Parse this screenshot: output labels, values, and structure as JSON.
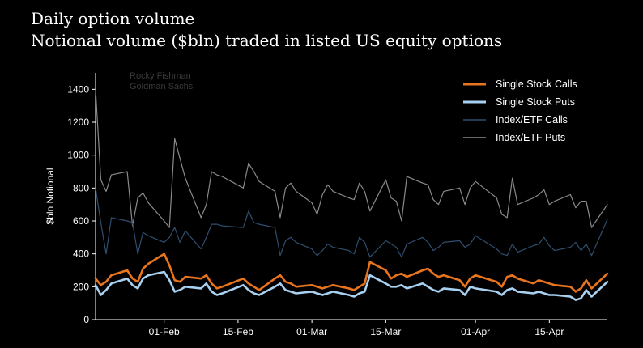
{
  "header": {
    "title": "Daily option volume",
    "subtitle": "Notional volume ($bln) traded in listed US equity options"
  },
  "chart_data": {
    "type": "line",
    "title": "Daily option volume",
    "subtitle": "Notional volume ($bln) traded in listed US equity options",
    "ylabel": "$bln Notional",
    "xlabel": "",
    "credit": [
      "Rocky Fishman",
      "Goldman Sachs"
    ],
    "ylim": [
      0,
      1500
    ],
    "yticks": [
      0,
      200,
      400,
      600,
      800,
      1000,
      1200,
      1400
    ],
    "x_start": "2021-01-19",
    "x_end": "2021-04-26",
    "xticks": [
      {
        "date": "2021-02-01",
        "label": "01-Feb"
      },
      {
        "date": "2021-02-15",
        "label": "15-Feb"
      },
      {
        "date": "2021-03-01",
        "label": "01-Mar"
      },
      {
        "date": "2021-03-15",
        "label": "15-Mar"
      },
      {
        "date": "2021-04-01",
        "label": "01-Apr"
      },
      {
        "date": "2021-04-15",
        "label": "15-Apr"
      }
    ],
    "legend_position": "top-right",
    "grid": false,
    "x": [
      "2021-01-19",
      "2021-01-20",
      "2021-01-21",
      "2021-01-22",
      "2021-01-25",
      "2021-01-26",
      "2021-01-27",
      "2021-01-28",
      "2021-01-29",
      "2021-02-01",
      "2021-02-02",
      "2021-02-03",
      "2021-02-04",
      "2021-02-05",
      "2021-02-08",
      "2021-02-09",
      "2021-02-10",
      "2021-02-11",
      "2021-02-12",
      "2021-02-16",
      "2021-02-17",
      "2021-02-18",
      "2021-02-19",
      "2021-02-22",
      "2021-02-23",
      "2021-02-24",
      "2021-02-25",
      "2021-02-26",
      "2021-03-01",
      "2021-03-02",
      "2021-03-03",
      "2021-03-04",
      "2021-03-05",
      "2021-03-08",
      "2021-03-09",
      "2021-03-10",
      "2021-03-11",
      "2021-03-12",
      "2021-03-15",
      "2021-03-16",
      "2021-03-17",
      "2021-03-18",
      "2021-03-19",
      "2021-03-22",
      "2021-03-23",
      "2021-03-24",
      "2021-03-25",
      "2021-03-26",
      "2021-03-29",
      "2021-03-30",
      "2021-03-31",
      "2021-04-01",
      "2021-04-05",
      "2021-04-06",
      "2021-04-07",
      "2021-04-08",
      "2021-04-09",
      "2021-04-12",
      "2021-04-13",
      "2021-04-14",
      "2021-04-15",
      "2021-04-16",
      "2021-04-19",
      "2021-04-20",
      "2021-04-21",
      "2021-04-22",
      "2021-04-23",
      "2021-04-26"
    ],
    "series": [
      {
        "name": "Index/ETF Puts",
        "color": "#8a8a8a",
        "width": 1.2,
        "values": [
          1400,
          850,
          780,
          880,
          900,
          570,
          740,
          770,
          710,
          600,
          560,
          1100,
          980,
          860,
          620,
          700,
          900,
          880,
          870,
          800,
          950,
          900,
          840,
          780,
          620,
          800,
          830,
          780,
          710,
          640,
          760,
          820,
          780,
          740,
          730,
          830,
          780,
          660,
          850,
          740,
          720,
          600,
          870,
          830,
          820,
          730,
          700,
          780,
          800,
          700,
          800,
          840,
          740,
          640,
          620,
          860,
          700,
          740,
          760,
          790,
          700,
          720,
          760,
          680,
          720,
          720,
          560,
          700
        ]
      },
      {
        "name": "Index/ETF Calls",
        "color": "#2f4e6e",
        "width": 1.2,
        "values": [
          800,
          590,
          400,
          620,
          600,
          590,
          400,
          530,
          510,
          470,
          500,
          560,
          470,
          540,
          430,
          500,
          580,
          580,
          570,
          560,
          660,
          590,
          580,
          560,
          390,
          480,
          500,
          470,
          430,
          390,
          420,
          460,
          440,
          420,
          400,
          500,
          470,
          380,
          480,
          460,
          440,
          380,
          460,
          500,
          470,
          420,
          440,
          470,
          480,
          440,
          460,
          510,
          430,
          400,
          390,
          460,
          410,
          450,
          460,
          500,
          450,
          420,
          440,
          470,
          420,
          460,
          390,
          610
        ]
      },
      {
        "name": "Single Stock Calls",
        "color": "#e8741e",
        "width": 2.6,
        "values": [
          250,
          210,
          230,
          270,
          300,
          250,
          230,
          310,
          340,
          400,
          330,
          240,
          230,
          260,
          250,
          270,
          220,
          190,
          200,
          250,
          220,
          200,
          180,
          250,
          270,
          230,
          220,
          200,
          210,
          200,
          190,
          200,
          210,
          190,
          180,
          200,
          220,
          350,
          300,
          250,
          270,
          280,
          260,
          300,
          310,
          280,
          260,
          270,
          240,
          200,
          250,
          270,
          230,
          200,
          260,
          270,
          250,
          220,
          240,
          230,
          220,
          210,
          200,
          170,
          190,
          240,
          190,
          280
        ]
      },
      {
        "name": "Single Stock Puts",
        "color": "#a8d0f0",
        "width": 2.6,
        "values": [
          210,
          150,
          180,
          220,
          250,
          210,
          190,
          250,
          270,
          290,
          240,
          170,
          180,
          200,
          190,
          220,
          170,
          150,
          160,
          210,
          180,
          160,
          150,
          200,
          220,
          180,
          170,
          160,
          170,
          160,
          150,
          160,
          170,
          150,
          140,
          160,
          170,
          270,
          220,
          200,
          200,
          210,
          190,
          220,
          200,
          180,
          170,
          190,
          180,
          150,
          200,
          190,
          170,
          150,
          180,
          190,
          170,
          160,
          170,
          160,
          150,
          150,
          140,
          120,
          130,
          180,
          140,
          230
        ]
      }
    ],
    "legend": [
      "Single Stock Calls",
      "Single Stock Puts",
      "Index/ETF Calls",
      "Index/ETF Puts"
    ]
  }
}
